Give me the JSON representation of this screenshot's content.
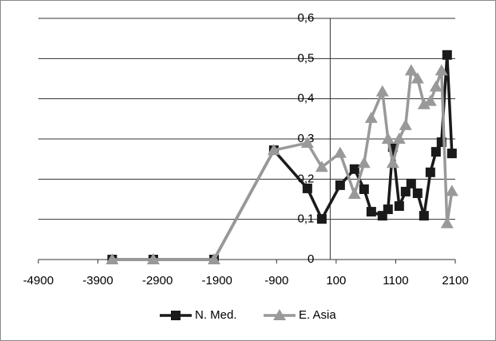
{
  "chart_data": {
    "type": "line",
    "x": [
      -3660,
      -2970,
      -1950,
      -946,
      -383,
      -141,
      167,
      408,
      569,
      690,
      877,
      971,
      1052,
      1159,
      1266,
      1360,
      1467,
      1575,
      1682,
      1776,
      1869,
      1963,
      2044
    ],
    "series": [
      {
        "name": "N. Med.",
        "color": "#1a1a1a",
        "marker": "square",
        "values": [
          0,
          0,
          0,
          0.272,
          0.177,
          0.101,
          0.185,
          0.225,
          0.175,
          0.119,
          0.109,
          0.125,
          0.28,
          0.133,
          0.169,
          0.189,
          0.165,
          0.109,
          0.217,
          0.268,
          0.292,
          0.509,
          0.264
        ]
      },
      {
        "name": "E. Asia",
        "color": "#999999",
        "marker": "triangle",
        "values": [
          0,
          0,
          0,
          0.272,
          0.29,
          0.23,
          0.265,
          0.163,
          0.24,
          0.352,
          0.418,
          0.3,
          0.24,
          0.3,
          0.334,
          0.47,
          0.45,
          0.386,
          0.394,
          0.43,
          0.47,
          0.09,
          0.17
        ]
      }
    ],
    "xlim": [
      -4900,
      2100
    ],
    "xticks": [
      -4900,
      -3900,
      -2900,
      -1900,
      -900,
      100,
      1100,
      2100
    ],
    "ylim": [
      0,
      0.6
    ],
    "yticks": [
      0,
      {
        "value": 0.1,
        "label": "0,1"
      },
      {
        "value": 0.2,
        "label": "0,2"
      },
      {
        "value": 0.3,
        "label": "0,3"
      },
      {
        "value": 0.4,
        "label": "0,4"
      },
      {
        "value": 0.5,
        "label": "0,5"
      },
      {
        "value": 0.6,
        "label": "0,6"
      }
    ],
    "grid": true,
    "legend": "bottom"
  }
}
